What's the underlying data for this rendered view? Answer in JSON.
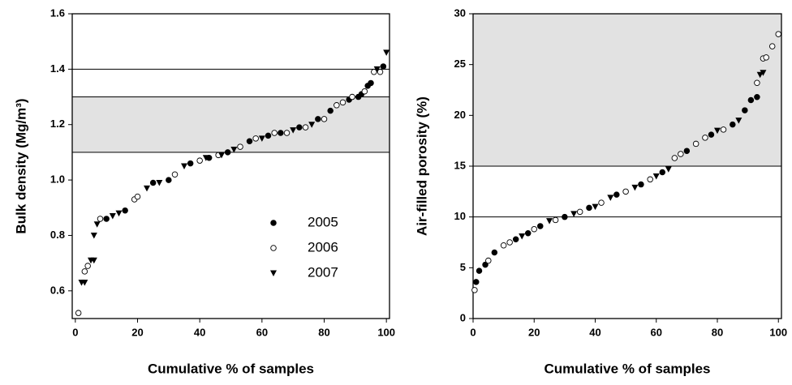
{
  "chart_data": [
    {
      "type": "scatter",
      "xlabel": "Cumulative % of samples",
      "ylabel": "Bulk density (Mg/m³)",
      "xlim": [
        -1,
        101
      ],
      "ylim": [
        0.5,
        1.6
      ],
      "xticks": [
        0,
        20,
        40,
        60,
        80,
        100
      ],
      "yticks": [
        0.6,
        0.8,
        {
          "value": 1.0,
          "label": "1.0"
        },
        1.2,
        1.4,
        1.6
      ],
      "bands": [
        {
          "from": 1.1,
          "to": 1.3,
          "color": "#e2e2e2"
        }
      ],
      "hlines": [
        1.4
      ],
      "legend": "lower right",
      "series": [
        {
          "name": "2005",
          "marker": "filled-circle",
          "color": "#000000",
          "x": [
            10,
            16,
            25,
            30,
            37,
            43,
            49,
            56,
            62,
            66,
            72,
            78,
            82,
            88,
            91,
            92,
            94,
            95,
            99
          ],
          "values": [
            0.86,
            0.89,
            0.99,
            1.0,
            1.06,
            1.08,
            1.1,
            1.14,
            1.16,
            1.17,
            1.19,
            1.22,
            1.25,
            1.29,
            1.3,
            1.31,
            1.34,
            1.35,
            1.41
          ]
        },
        {
          "name": "2006",
          "marker": "open-circle",
          "color": "#000000",
          "x": [
            1,
            3,
            4,
            8,
            19,
            20,
            32,
            40,
            46,
            53,
            58,
            64,
            68,
            74,
            80,
            84,
            86,
            89,
            93,
            96,
            98
          ],
          "values": [
            0.52,
            0.67,
            0.69,
            0.86,
            0.93,
            0.94,
            1.02,
            1.07,
            1.09,
            1.12,
            1.15,
            1.17,
            1.17,
            1.19,
            1.22,
            1.27,
            1.28,
            1.3,
            1.32,
            1.39,
            1.39
          ]
        },
        {
          "name": "2007",
          "marker": "triangle-down",
          "color": "#000000",
          "x": [
            2,
            3,
            5,
            6,
            6,
            7,
            12,
            14,
            23,
            27,
            35,
            42,
            47,
            51,
            60,
            70,
            76,
            97,
            100
          ],
          "values": [
            0.63,
            0.63,
            0.71,
            0.71,
            0.8,
            0.84,
            0.87,
            0.88,
            0.97,
            0.99,
            1.05,
            1.08,
            1.09,
            1.11,
            1.15,
            1.18,
            1.2,
            1.4,
            1.46
          ]
        }
      ]
    },
    {
      "type": "scatter",
      "xlabel": "Cumulative % of samples",
      "ylabel": "Air-filled porosity (%)",
      "xlim": [
        0,
        101
      ],
      "ylim": [
        0,
        30
      ],
      "xticks": [
        0,
        20,
        40,
        60,
        80,
        100
      ],
      "yticks": [
        0,
        5,
        10,
        15,
        20,
        25,
        30
      ],
      "bands": [
        {
          "from": 15,
          "to": 30,
          "color": "#e2e2e2"
        }
      ],
      "hlines": [
        10
      ],
      "series": [
        {
          "marker": "filled-circle",
          "color": "#000000",
          "x": [
            1,
            2,
            4,
            7,
            14,
            18,
            22,
            30,
            38,
            47,
            55,
            62,
            70,
            78,
            85,
            89,
            91,
            93
          ],
          "values": [
            3.6,
            4.7,
            5.3,
            6.5,
            7.8,
            8.4,
            9.1,
            10.0,
            10.9,
            12.2,
            13.2,
            14.4,
            16.5,
            18.1,
            19.1,
            20.5,
            21.5,
            21.8
          ]
        },
        {
          "marker": "open-circle",
          "color": "#000000",
          "x": [
            0.5,
            5,
            10,
            12,
            20,
            27,
            35,
            42,
            50,
            58,
            66,
            68,
            73,
            76,
            82,
            93,
            95,
            96,
            98,
            100
          ],
          "values": [
            2.8,
            5.7,
            7.2,
            7.5,
            8.8,
            9.7,
            10.5,
            11.4,
            12.5,
            13.7,
            15.8,
            16.2,
            17.2,
            17.8,
            18.6,
            23.2,
            25.6,
            25.7,
            26.8,
            28.0
          ]
        },
        {
          "marker": "triangle-down",
          "color": "#000000",
          "x": [
            16,
            25,
            33,
            40,
            45,
            53,
            60,
            64,
            80,
            87,
            94,
            95
          ],
          "values": [
            8.1,
            9.6,
            10.3,
            11.0,
            11.9,
            12.9,
            14.0,
            14.7,
            18.5,
            19.5,
            24.0,
            24.2
          ]
        }
      ]
    }
  ]
}
